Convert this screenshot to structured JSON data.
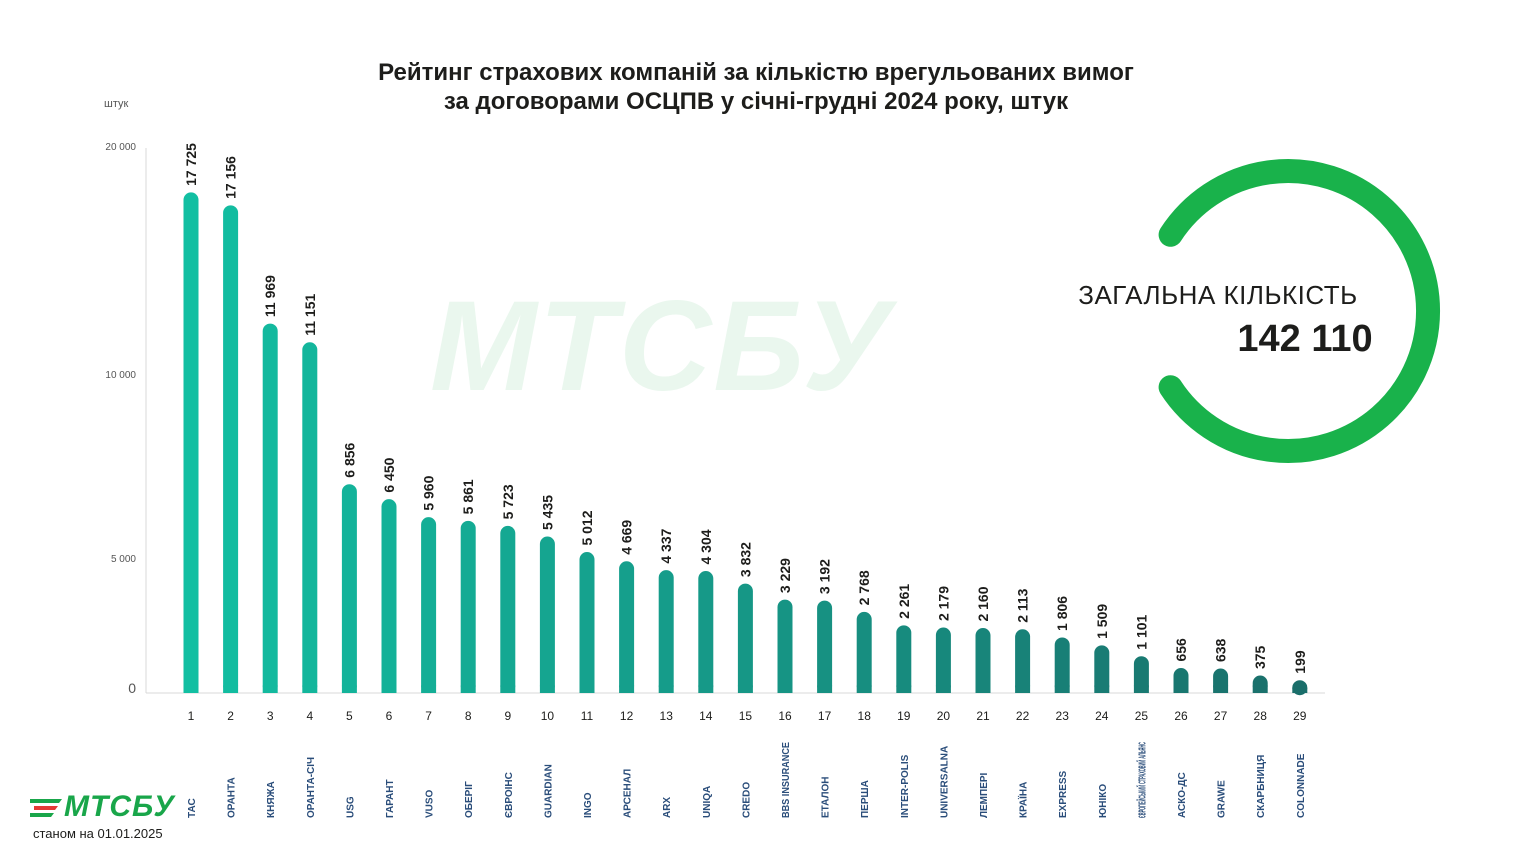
{
  "header": {
    "title_line1": "Рейтинг страхових компаній за кількістю врегульованих вимог",
    "title_line2": "за договорами ОСЦПВ у січні-грудні 2024 року, штук"
  },
  "y_unit": "штук",
  "total": {
    "label": "ЗАГАЛЬНА КІЛЬКІСТЬ",
    "value": "142 110"
  },
  "brand": {
    "watermark": "МТСБУ",
    "logo": "МТСБУ",
    "as_of": "станом на 01.01.2025"
  },
  "colors": {
    "bar_start": "#12bfa2",
    "bar_end": "#1a6e6a",
    "ring": "#19b24b"
  },
  "chart_data": {
    "type": "bar",
    "title": "Рейтинг страхових компаній за кількістю врегульованих вимог за договорами ОСЦПВ у січні-грудні 2024 року, штук",
    "ylabel": "штук",
    "y_ticks": [
      "20 000",
      "10 000",
      "5 000",
      "0"
    ],
    "scale": "piecewise-linear",
    "grid": false,
    "categories": [
      "1",
      "2",
      "3",
      "4",
      "5",
      "6",
      "7",
      "8",
      "9",
      "10",
      "11",
      "12",
      "13",
      "14",
      "15",
      "16",
      "17",
      "18",
      "19",
      "20",
      "21",
      "22",
      "23",
      "24",
      "25",
      "26",
      "27",
      "28",
      "29"
    ],
    "companies": [
      "ТАС",
      "ОРАНТА",
      "КНЯЖА",
      "ОРАНТА-СІЧ",
      "USG",
      "ГАРАНТ",
      "VUSO",
      "ОБЕРІГ",
      "ЄВРОІНС",
      "GUARDIAN",
      "INGO",
      "АРСЕНАЛ",
      "ARX",
      "UNIQA",
      "CREDO",
      "BBS INSURANCE",
      "ЕТАЛОН",
      "ПЕРША",
      "INTER-POLIS",
      "UNIVERSALNA",
      "ЛЕМПЕРІ",
      "КРАЇНА",
      "EXPRESS",
      "ЮНІКО",
      "ЄВРОПЕЙСЬКИЙ СТРАХОВИЙ АЛЬЯНС",
      "АСКО-ДС",
      "GRAWE",
      "СКАРБНИЦЯ",
      "COLONNADE"
    ],
    "values": [
      17725,
      17156,
      11969,
      11151,
      6856,
      6450,
      5960,
      5861,
      5723,
      5435,
      5012,
      4669,
      4337,
      4304,
      3832,
      3229,
      3192,
      2768,
      2261,
      2179,
      2160,
      2113,
      1806,
      1509,
      1101,
      656,
      638,
      375,
      199
    ],
    "value_labels": [
      "17 725",
      "17 156",
      "11 969",
      "11 151",
      "6 856",
      "6 450",
      "5 960",
      "5 861",
      "5 723",
      "5 435",
      "5 012",
      "4 669",
      "4 337",
      "4 304",
      "3 832",
      "3 229",
      "3 192",
      "2 768",
      "2 261",
      "2 179",
      "2 160",
      "2 113",
      "1 806",
      "1 509",
      "1 101",
      "656",
      "638",
      "375",
      "199"
    ]
  }
}
